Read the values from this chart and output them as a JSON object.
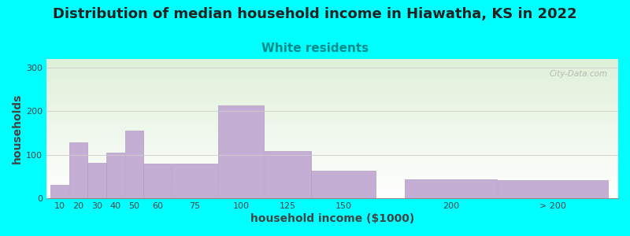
{
  "title": "Distribution of median household income in Hiawatha, KS in 2022",
  "subtitle": "White residents",
  "xlabel": "household income ($1000)",
  "ylabel": "households",
  "background_color": "#00FFFF",
  "bar_color": "#c4aed4",
  "bar_edge_color": "#b09cc0",
  "bar_values": [
    30,
    128,
    82,
    104,
    155,
    80,
    80,
    213,
    108,
    63,
    43,
    42
  ],
  "bar_lefts": [
    10,
    20,
    30,
    40,
    50,
    60,
    75,
    100,
    125,
    150,
    200,
    250
  ],
  "bar_widths": [
    10,
    10,
    10,
    10,
    10,
    15,
    25,
    25,
    25,
    35,
    50,
    60
  ],
  "yticks": [
    0,
    100,
    200,
    300
  ],
  "ylim": [
    0,
    320
  ],
  "xlim_left": 8,
  "xlim_right": 315,
  "xtick_labels": [
    "10",
    "20",
    "30",
    "40",
    "50",
    "60",
    "75",
    "100",
    "125",
    "150",
    "200",
    "> 200"
  ],
  "watermark": "City-Data.com",
  "title_fontsize": 13,
  "subtitle_fontsize": 11,
  "subtitle_color": "#008B8B",
  "title_color": "#222222",
  "axis_label_fontsize": 10,
  "tick_fontsize": 8,
  "gradient_top_color": "#f8fff8",
  "gradient_bottom_color": "#ffffff"
}
